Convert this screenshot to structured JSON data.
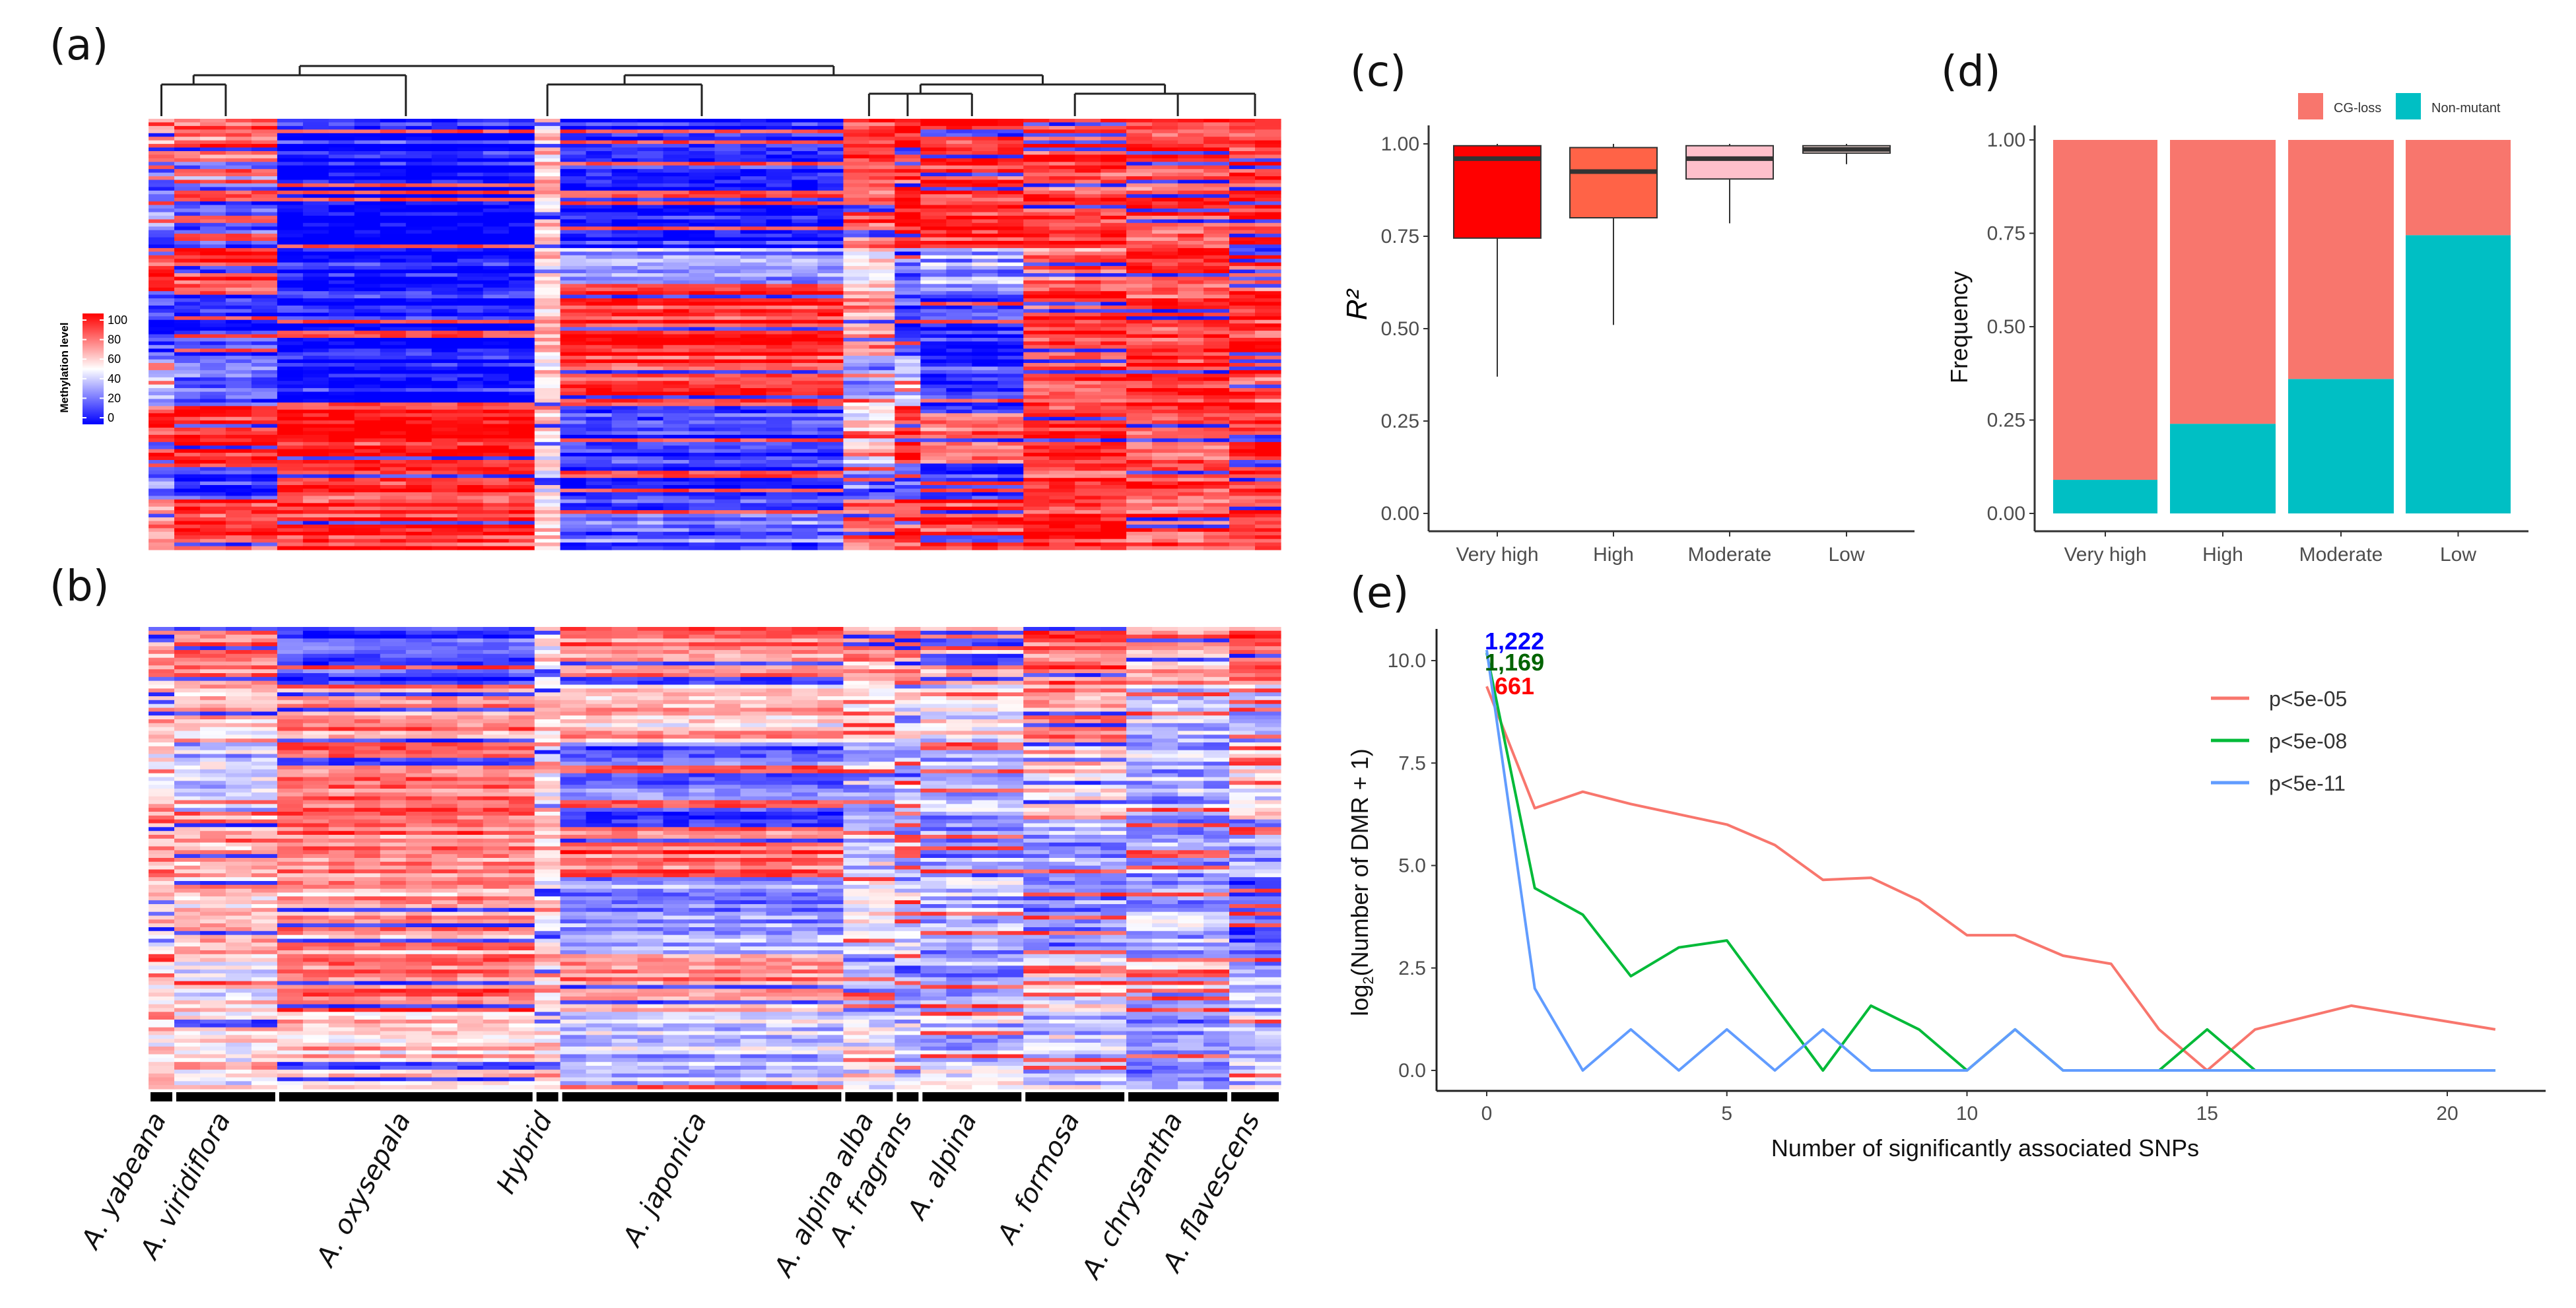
{
  "panel_labels": {
    "a": "(a)",
    "b": "(b)",
    "c": "(c)",
    "d": "(d)",
    "e": "(e)"
  },
  "species": [
    {
      "name": "A. yabeana",
      "columns": 1
    },
    {
      "name": "A. viridiflora",
      "columns": 4
    },
    {
      "name": "A. oxysepala",
      "columns": 10
    },
    {
      "name": "Hybrid",
      "columns": 1
    },
    {
      "name": "A. japonica",
      "columns": 11
    },
    {
      "name": "A. alpina alba",
      "columns": 2
    },
    {
      "name": "A. fragrans",
      "columns": 1
    },
    {
      "name": "A. alpina",
      "columns": 4
    },
    {
      "name": "A. formosa",
      "columns": 4
    },
    {
      "name": "A. chrysantha",
      "columns": 4
    },
    {
      "name": "A. flavescens",
      "columns": 2
    }
  ],
  "chart_data": [
    {
      "type": "heatmap",
      "panel": "a",
      "dendrogram": true,
      "legend": {
        "title": "Methylation level",
        "ticks": [
          "0",
          "20",
          "40",
          "60",
          "80",
          "100"
        ],
        "low_color": "#0000ff",
        "mid_color": "#ffffff",
        "high_color": "#ff0000",
        "range": [
          0,
          100
        ]
      },
      "block_rows": [
        12,
        24,
        12,
        18,
        14,
        16,
        10,
        14
      ],
      "group_levels": [
        [
          0.7,
          0.2,
          0.9,
          0.1,
          0.3,
          0.9,
          0.2,
          0.8
        ],
        [
          0.8,
          0.2,
          0.9,
          0.1,
          0.2,
          0.9,
          0.1,
          0.9
        ],
        [
          0.05,
          0.02,
          0.02,
          0.05,
          0.03,
          0.95,
          0.9,
          0.9
        ],
        [
          0.55,
          0.6,
          0.55,
          0.6,
          0.55,
          0.6,
          0.55,
          0.6
        ],
        [
          0.1,
          0.05,
          0.3,
          0.9,
          0.9,
          0.1,
          0.1,
          0.2
        ],
        [
          0.9,
          0.85,
          0.5,
          0.7,
          0.3,
          0.5,
          0.2,
          0.8
        ],
        [
          0.9,
          0.9,
          0.2,
          0.15,
          0.3,
          0.9,
          0.2,
          0.9
        ],
        [
          0.9,
          0.9,
          0.3,
          0.1,
          0.1,
          0.8,
          0.1,
          0.9
        ],
        [
          0.9,
          0.85,
          0.8,
          0.9,
          0.85,
          0.9,
          0.85,
          0.9
        ],
        [
          0.9,
          0.85,
          0.9,
          0.85,
          0.9,
          0.85,
          0.9,
          0.85
        ],
        [
          0.9,
          0.9,
          0.85,
          0.9,
          0.85,
          0.9,
          0.9,
          0.9
        ]
      ]
    },
    {
      "type": "heatmap",
      "panel": "b",
      "block_rows": [
        15,
        15,
        20,
        15,
        20,
        15,
        20
      ],
      "group_levels": [
        [
          0.7,
          0.6,
          0.5,
          0.7,
          0.6,
          0.5,
          0.6
        ],
        [
          0.75,
          0.6,
          0.4,
          0.7,
          0.65,
          0.5,
          0.55
        ],
        [
          0.1,
          0.75,
          0.8,
          0.75,
          0.7,
          0.8,
          0.6
        ],
        [
          0.6,
          0.6,
          0.55,
          0.6,
          0.6,
          0.6,
          0.6
        ],
        [
          0.75,
          0.6,
          0.2,
          0.8,
          0.3,
          0.7,
          0.4
        ],
        [
          0.7,
          0.5,
          0.35,
          0.4,
          0.5,
          0.3,
          0.5
        ],
        [
          0.75,
          0.55,
          0.3,
          0.35,
          0.4,
          0.3,
          0.4
        ],
        [
          0.7,
          0.5,
          0.3,
          0.3,
          0.35,
          0.3,
          0.4
        ],
        [
          0.8,
          0.75,
          0.6,
          0.3,
          0.25,
          0.5,
          0.4
        ],
        [
          0.7,
          0.4,
          0.35,
          0.3,
          0.35,
          0.4,
          0.3
        ],
        [
          0.8,
          0.3,
          0.5,
          0.3,
          0.2,
          0.3,
          0.4
        ]
      ]
    },
    {
      "type": "box",
      "panel": "c",
      "ylabel": "R²",
      "ylim": [
        0,
        1
      ],
      "yticks": [
        "0.00",
        "0.25",
        "0.50",
        "0.75",
        "1.00"
      ],
      "categories": [
        "Very high",
        "High",
        "Moderate",
        "Low"
      ],
      "boxes": [
        {
          "min": 0.37,
          "q1": 0.745,
          "median": 0.96,
          "q3": 0.995,
          "max": 1.0,
          "color": "#ff0000"
        },
        {
          "min": 0.51,
          "q1": 0.8,
          "median": 0.925,
          "q3": 0.99,
          "max": 1.0,
          "color": "#ff6347"
        },
        {
          "min": 0.785,
          "q1": 0.905,
          "median": 0.96,
          "q3": 0.995,
          "max": 1.0,
          "color": "#ffc0cb"
        },
        {
          "min": 0.945,
          "q1": 0.975,
          "median": 0.985,
          "q3": 0.995,
          "max": 1.0,
          "color": "#ffe4e1"
        }
      ]
    },
    {
      "type": "bar",
      "stacked": true,
      "panel": "d",
      "ylabel": "Frequency",
      "ylim": [
        0,
        1
      ],
      "yticks": [
        "0.00",
        "0.25",
        "0.50",
        "0.75",
        "1.00"
      ],
      "categories": [
        "Very high",
        "High",
        "Moderate",
        "Low"
      ],
      "legend_position": "top-right",
      "series": [
        {
          "name": "Non-mutant",
          "color": "#00bfc4",
          "values": [
            0.09,
            0.24,
            0.36,
            0.745
          ]
        },
        {
          "name": "CG-loss",
          "color": "#f8766d",
          "values": [
            0.91,
            0.76,
            0.64,
            0.255
          ]
        }
      ]
    },
    {
      "type": "line",
      "panel": "e",
      "xlabel": "Number of significantly associated SNPs",
      "ylabel_main": "log",
      "ylabel_sub": "2",
      "ylabel_rest": "(Number of DMR + 1)",
      "xlim": [
        0,
        21
      ],
      "ylim": [
        0,
        10.5
      ],
      "xticks": [
        "0",
        "5",
        "10",
        "15",
        "20"
      ],
      "yticks": [
        "0.0",
        "2.5",
        "5.0",
        "7.5",
        "10.0"
      ],
      "legend_position": "top-right",
      "series": [
        {
          "name": "p<5e-05",
          "color": "#f8766d",
          "label": "661",
          "label_color": "#ff0000",
          "x": [
            0,
            1,
            2,
            3,
            4,
            5,
            6,
            7,
            8,
            9,
            10,
            11,
            12,
            13,
            14,
            15,
            16,
            18,
            21
          ],
          "y": [
            9.37,
            6.4,
            6.8,
            6.5,
            6.25,
            6.0,
            5.5,
            4.65,
            4.7,
            4.15,
            3.3,
            3.3,
            2.8,
            2.6,
            1.0,
            0,
            1.0,
            1.58,
            1.0
          ]
        },
        {
          "name": "p<5e-08",
          "color": "#00ba38",
          "label": "1,169",
          "label_color": "#006400",
          "x": [
            0,
            1,
            2,
            3,
            4,
            5,
            6,
            7,
            8,
            9,
            10,
            11,
            12,
            13,
            14,
            15,
            16,
            17,
            18,
            19,
            20,
            21
          ],
          "y": [
            10.19,
            4.45,
            3.8,
            2.3,
            3.0,
            3.17,
            1.58,
            0,
            1.58,
            1.0,
            0,
            1.0,
            0,
            0,
            0,
            1.0,
            0,
            0,
            0,
            0,
            0,
            0
          ]
        },
        {
          "name": "p<5e-11",
          "color": "#619cff",
          "label": "1,222",
          "label_color": "#0000ff",
          "x": [
            0,
            1,
            2,
            3,
            4,
            5,
            6,
            7,
            8,
            9,
            10,
            11,
            12,
            13,
            14,
            15,
            16,
            17,
            18,
            19,
            20,
            21
          ],
          "y": [
            10.26,
            2.0,
            0,
            1,
            0,
            1,
            0,
            1,
            0,
            0,
            0,
            1,
            0,
            0,
            0,
            0,
            0,
            0,
            0,
            0,
            0,
            0
          ]
        }
      ]
    }
  ]
}
